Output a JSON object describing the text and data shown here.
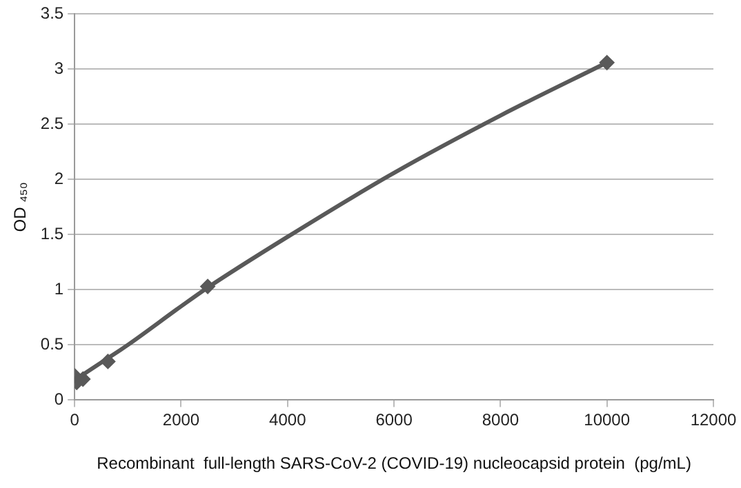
{
  "chart_data": {
    "type": "scatter",
    "xlabel": "Recombinant  full-length SARS-CoV-2 (COVID-19) nucleocapsid protein  (pg/mL)",
    "ylabel": "OD ₄₅₀",
    "series": [
      {
        "color": "#595959",
        "x": [
          0,
          39,
          156,
          625,
          2500,
          10000
        ],
        "values": [
          0.22,
          0.16,
          0.19,
          0.35,
          1.03,
          3.06
        ],
        "marker": "diamond"
      },
      {
        "type": "line",
        "color": "#595959",
        "x": [
          0,
          500,
          1000,
          2000,
          2500,
          4000,
          6000,
          8000,
          10000
        ],
        "values": [
          0.18,
          0.34,
          0.5,
          0.85,
          1.02,
          1.48,
          2.06,
          2.58,
          3.06
        ],
        "marker": "none",
        "line_style": "solid"
      }
    ],
    "xlim": [
      0,
      12000
    ],
    "xticks": [
      0,
      2000,
      4000,
      6000,
      8000,
      10000,
      12000
    ],
    "ylim": [
      0,
      3.5
    ],
    "yticks": [
      0,
      0.5,
      1,
      1.5,
      2,
      2.5,
      3,
      3.5
    ],
    "grid": "y",
    "legend": false
  }
}
